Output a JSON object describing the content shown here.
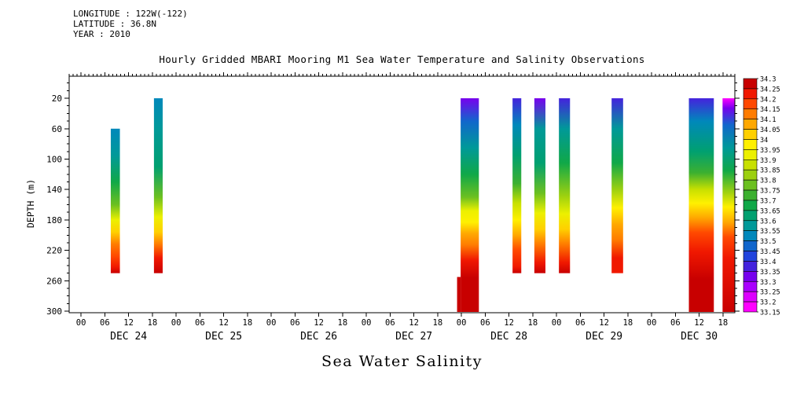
{
  "header": {
    "longitude": "LONGITUDE : 122W(-122)",
    "latitude": "LATITUDE : 36.8N",
    "year": "YEAR : 2010"
  },
  "title": "Hourly Gridded MBARI Mooring M1 Sea Water Temperature and Salinity Observations",
  "chart_data": {
    "type": "heatmap",
    "xlabel": "Sea Water Salinity",
    "ylabel": "DEPTH (m)",
    "x_axis": {
      "days": [
        "DEC 24",
        "DEC 25",
        "DEC 26",
        "DEC 27",
        "DEC 28",
        "DEC 29",
        "DEC 30"
      ],
      "hour_ticks": [
        "00",
        "06",
        "12",
        "18"
      ],
      "hours_domain": [
        -3,
        165
      ]
    },
    "y_axis": {
      "label": "DEPTH (m)",
      "ticks": [
        20,
        60,
        100,
        140,
        180,
        220,
        260,
        300
      ],
      "domain": [
        -9,
        302
      ]
    },
    "colorbar": {
      "min": 33.15,
      "max": 34.3,
      "step": 0.05,
      "labels": [
        "34.3",
        "34.25",
        "34.2",
        "34.15",
        "34.1",
        "34.05",
        "34",
        "33.95",
        "33.9",
        "33.85",
        "33.8",
        "33.75",
        "33.7",
        "33.65",
        "33.6",
        "33.55",
        "33.5",
        "33.45",
        "33.4",
        "33.35",
        "33.3",
        "33.25",
        "33.2",
        "33.15"
      ],
      "colors": [
        "#FF00FF",
        "#DD00FF",
        "#AA00FF",
        "#7700EE",
        "#4422DD",
        "#2244DD",
        "#1166CC",
        "#0088BB",
        "#009999",
        "#00A070",
        "#10A848",
        "#3CB030",
        "#6CC020",
        "#9CD010",
        "#C8E000",
        "#ECF000",
        "#FFF000",
        "#FFD000",
        "#FFA800",
        "#FF7C00",
        "#FF4800",
        "#F01800",
        "#C80000"
      ]
    },
    "columns": [
      {
        "start_hour": 7.5,
        "end_hour": 9.8,
        "profile": [
          [
            60,
            33.52
          ],
          [
            95,
            33.58
          ],
          [
            130,
            33.66
          ],
          [
            160,
            33.78
          ],
          [
            180,
            33.92
          ],
          [
            196,
            34.02
          ],
          [
            212,
            34.1
          ],
          [
            228,
            34.18
          ],
          [
            242,
            34.24
          ],
          [
            250,
            34.26
          ]
        ]
      },
      {
        "start_hour": 18.4,
        "end_hour": 20.6,
        "profile": [
          [
            20,
            33.5
          ],
          [
            60,
            33.58
          ],
          [
            110,
            33.64
          ],
          [
            150,
            33.76
          ],
          [
            176,
            33.9
          ],
          [
            196,
            34.02
          ],
          [
            212,
            34.1
          ],
          [
            230,
            34.2
          ],
          [
            250,
            34.27
          ]
        ]
      },
      {
        "start_hour": 94.9,
        "end_hour": 95.8,
        "profile": [
          [
            255,
            34.27
          ],
          [
            301,
            34.27
          ]
        ]
      },
      {
        "start_hour": 95.8,
        "end_hour": 100.4,
        "profile": [
          [
            20,
            33.34
          ],
          [
            50,
            33.46
          ],
          [
            85,
            33.56
          ],
          [
            120,
            33.66
          ],
          [
            150,
            33.76
          ],
          [
            168,
            33.9
          ],
          [
            183,
            33.98
          ],
          [
            198,
            34.06
          ],
          [
            213,
            34.12
          ],
          [
            233,
            34.2
          ],
          [
            256,
            34.26
          ],
          [
            301,
            34.27
          ]
        ]
      },
      {
        "start_hour": 108.9,
        "end_hour": 111.1,
        "profile": [
          [
            20,
            33.36
          ],
          [
            55,
            33.52
          ],
          [
            95,
            33.62
          ],
          [
            132,
            33.71
          ],
          [
            158,
            33.85
          ],
          [
            180,
            33.96
          ],
          [
            200,
            34.06
          ],
          [
            220,
            34.16
          ],
          [
            242,
            34.24
          ],
          [
            250,
            34.26
          ]
        ]
      },
      {
        "start_hour": 114.4,
        "end_hour": 117.2,
        "profile": [
          [
            20,
            33.34
          ],
          [
            60,
            33.55
          ],
          [
            105,
            33.64
          ],
          [
            145,
            33.78
          ],
          [
            171,
            33.92
          ],
          [
            192,
            34.03
          ],
          [
            212,
            34.13
          ],
          [
            236,
            34.22
          ],
          [
            250,
            34.26
          ]
        ]
      },
      {
        "start_hour": 120.6,
        "end_hour": 123.4,
        "profile": [
          [
            20,
            33.38
          ],
          [
            60,
            33.55
          ],
          [
            105,
            33.65
          ],
          [
            148,
            33.8
          ],
          [
            172,
            33.94
          ],
          [
            192,
            34.04
          ],
          [
            212,
            34.14
          ],
          [
            236,
            34.22
          ],
          [
            250,
            34.25
          ]
        ]
      },
      {
        "start_hour": 133.9,
        "end_hour": 136.8,
        "profile": [
          [
            20,
            33.36
          ],
          [
            60,
            33.58
          ],
          [
            105,
            33.68
          ],
          [
            140,
            33.84
          ],
          [
            164,
            33.96
          ],
          [
            186,
            34.05
          ],
          [
            206,
            34.14
          ],
          [
            230,
            34.21
          ],
          [
            250,
            34.23
          ]
        ]
      },
      {
        "start_hour": 153.4,
        "end_hour": 159.7,
        "profile": [
          [
            20,
            33.35
          ],
          [
            50,
            33.5
          ],
          [
            90,
            33.6
          ],
          [
            118,
            33.72
          ],
          [
            140,
            33.86
          ],
          [
            158,
            33.96
          ],
          [
            177,
            34.06
          ],
          [
            197,
            34.16
          ],
          [
            222,
            34.24
          ],
          [
            258,
            34.29
          ],
          [
            301,
            34.27
          ]
        ]
      },
      {
        "start_hour": 161.9,
        "end_hour": 165.0,
        "profile": [
          [
            20,
            33.16
          ],
          [
            33,
            33.3
          ],
          [
            55,
            33.46
          ],
          [
            85,
            33.56
          ],
          [
            115,
            33.66
          ],
          [
            143,
            33.8
          ],
          [
            163,
            33.96
          ],
          [
            183,
            34.06
          ],
          [
            203,
            34.16
          ],
          [
            230,
            34.24
          ],
          [
            301,
            34.26
          ]
        ]
      }
    ]
  }
}
